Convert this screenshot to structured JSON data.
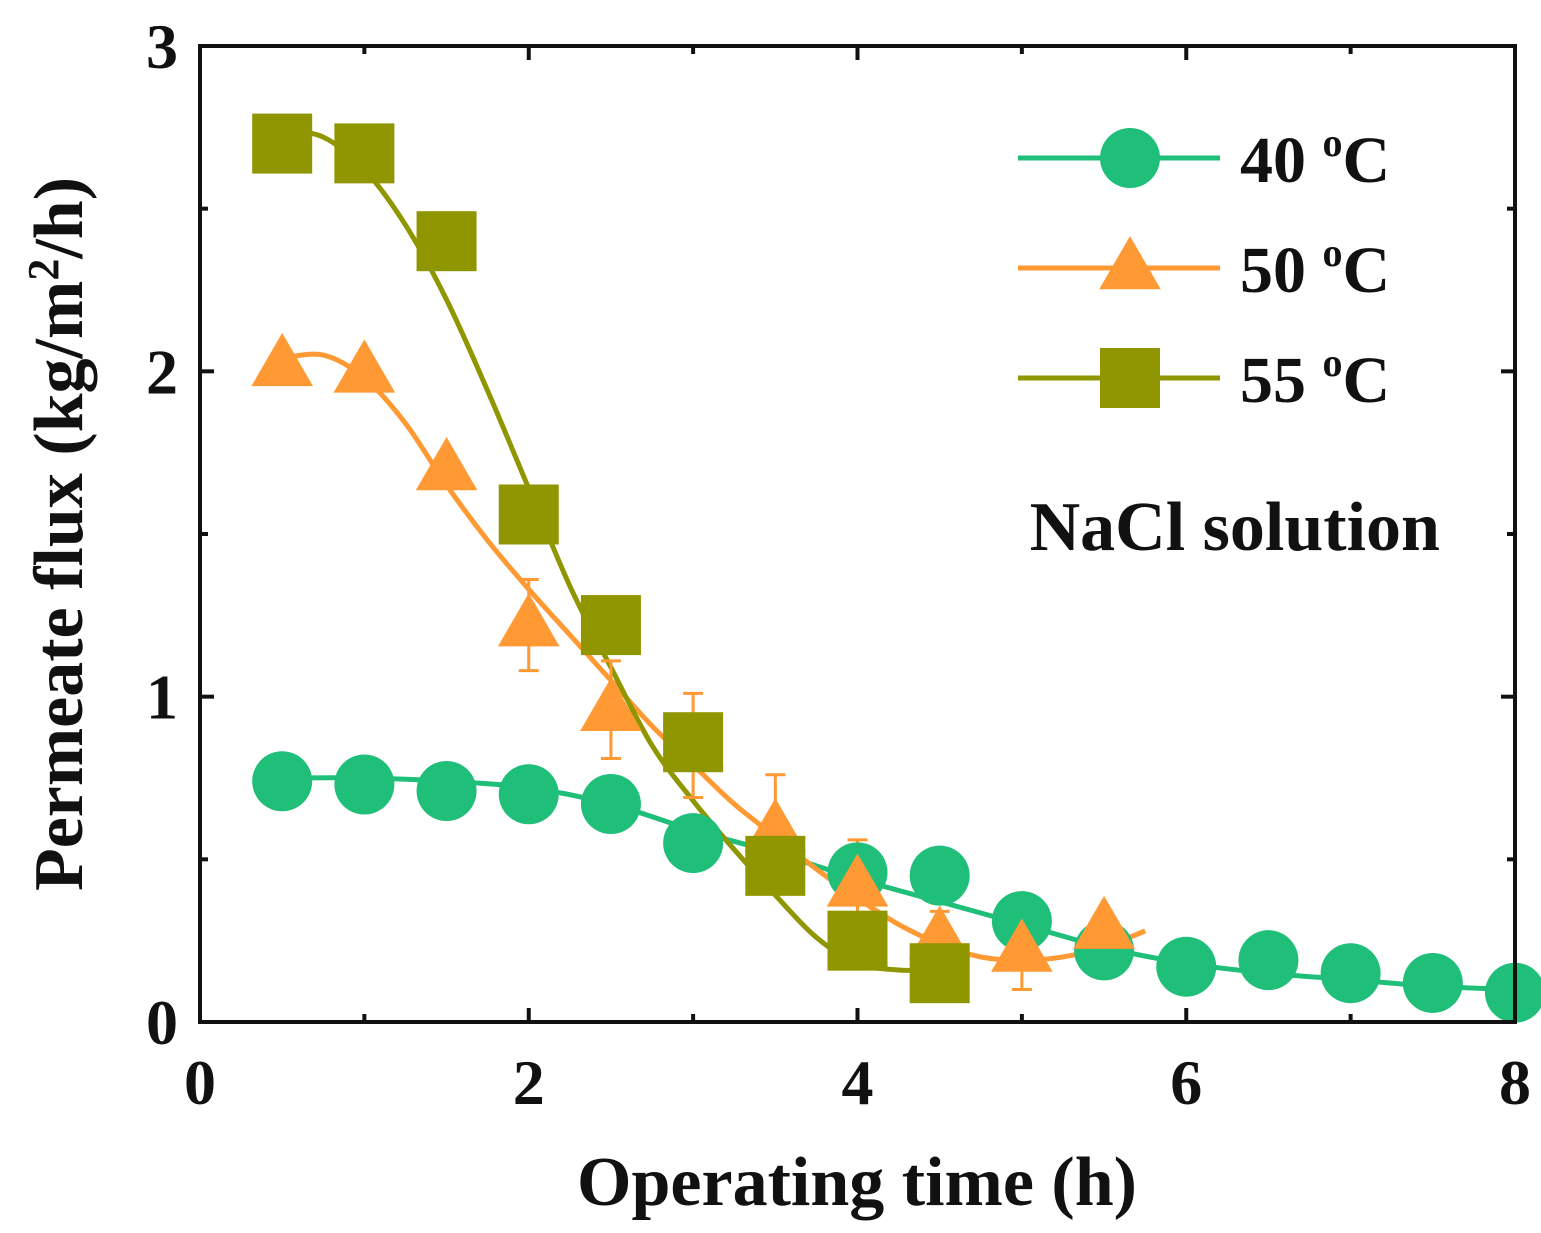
{
  "chart_data": {
    "type": "line",
    "title": "",
    "xlabel": "Operating time (h)",
    "ylabel_main": "Permeate flux (kg/m",
    "ylabel_sup": "2",
    "ylabel_tail": "/h)",
    "xlim": [
      0,
      8
    ],
    "ylim": [
      0,
      3
    ],
    "x_ticks": [
      0,
      2,
      4,
      6,
      8
    ],
    "x_tick_labels": [
      "0",
      "2",
      "4",
      "6",
      "8"
    ],
    "y_ticks": [
      0,
      1,
      2,
      3
    ],
    "y_tick_labels": [
      "0",
      "1",
      "2",
      "3"
    ],
    "legend_position": "top-right",
    "annotation": "NaCl solution",
    "series": [
      {
        "name": "40 ºC",
        "label_num": "40 ",
        "label_deg": "o",
        "label_unit": "C",
        "color": "#1fbf7a",
        "marker": "circle",
        "x": [
          0.5,
          1.0,
          1.5,
          2.0,
          2.5,
          3.0,
          3.5,
          4.0,
          4.5,
          5.0,
          5.5,
          6.0,
          6.5,
          7.0,
          7.5,
          8.0
        ],
        "y": [
          0.74,
          0.73,
          0.71,
          0.7,
          0.67,
          0.55,
          0.49,
          0.46,
          0.45,
          0.31,
          0.22,
          0.17,
          0.19,
          0.15,
          0.12,
          0.09
        ],
        "fit_x": [
          0.5,
          1.0,
          1.5,
          2.0,
          2.5,
          3.0,
          3.5,
          4.0,
          4.5,
          5.0,
          5.5,
          6.0,
          6.5,
          7.0,
          7.5,
          8.0
        ],
        "fit_y": [
          0.75,
          0.75,
          0.74,
          0.72,
          0.67,
          0.59,
          0.52,
          0.44,
          0.37,
          0.3,
          0.23,
          0.18,
          0.15,
          0.13,
          0.11,
          0.1
        ]
      },
      {
        "name": "50 ºC",
        "label_num": "50 ",
        "label_deg": "o",
        "label_unit": "C",
        "color": "#ff9933",
        "marker": "triangle",
        "x": [
          0.5,
          1.0,
          1.5,
          2.0,
          2.5,
          3.0,
          3.5,
          4.0,
          4.5,
          5.0,
          5.5
        ],
        "y": [
          2.02,
          2.0,
          1.7,
          1.22,
          0.96,
          0.85,
          0.59,
          0.42,
          0.26,
          0.22,
          0.29
        ],
        "err": [
          0,
          0,
          0,
          0.14,
          0.15,
          0.16,
          0.17,
          0.14,
          0.08,
          0.12,
          0.04
        ],
        "fit_x": [
          0.5,
          0.75,
          1.0,
          1.25,
          1.5,
          1.75,
          2.0,
          2.25,
          2.5,
          2.75,
          3.0,
          3.25,
          3.5,
          3.75,
          4.0,
          4.25,
          4.5,
          4.75,
          5.0,
          5.25,
          5.5,
          5.75
        ],
        "fit_y": [
          2.04,
          2.05,
          1.98,
          1.84,
          1.65,
          1.48,
          1.33,
          1.19,
          1.05,
          0.91,
          0.79,
          0.67,
          0.57,
          0.47,
          0.38,
          0.3,
          0.24,
          0.2,
          0.19,
          0.2,
          0.23,
          0.28
        ]
      },
      {
        "name": "55 ºC",
        "label_num": "55 ",
        "label_deg": "o",
        "label_unit": "C",
        "color": "#8f9600",
        "marker": "square",
        "x": [
          0.5,
          1.0,
          1.5,
          2.0,
          2.5,
          3.0,
          3.5,
          4.0,
          4.5
        ],
        "y": [
          2.7,
          2.67,
          2.4,
          1.56,
          1.22,
          0.86,
          0.48,
          0.25,
          0.15
        ],
        "fit_x": [
          0.5,
          0.75,
          1.0,
          1.25,
          1.5,
          1.75,
          2.0,
          2.25,
          2.5,
          2.75,
          3.0,
          3.25,
          3.5,
          3.75,
          4.0,
          4.25,
          4.5
        ],
        "fit_y": [
          2.74,
          2.72,
          2.62,
          2.45,
          2.22,
          1.94,
          1.64,
          1.34,
          1.09,
          0.85,
          0.68,
          0.53,
          0.39,
          0.26,
          0.18,
          0.16,
          0.16
        ]
      }
    ]
  }
}
